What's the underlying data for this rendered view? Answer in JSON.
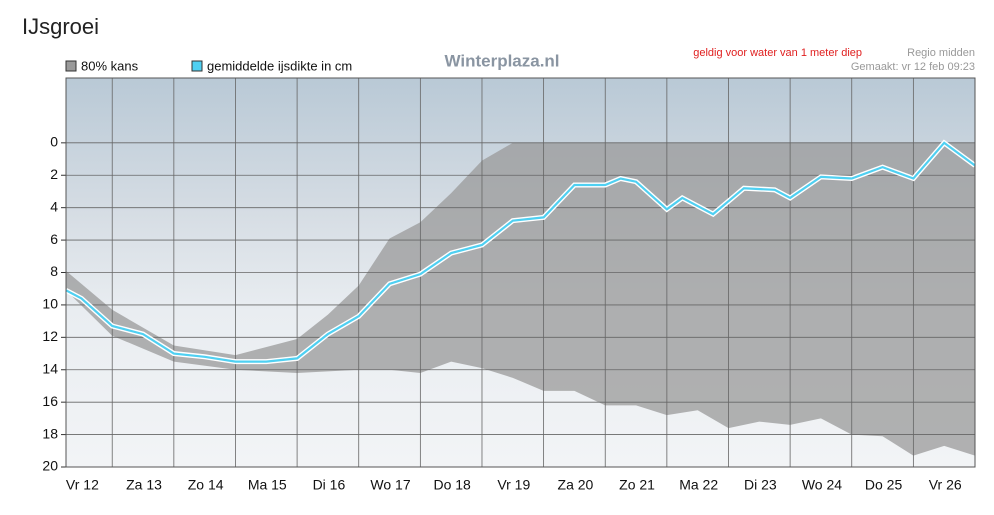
{
  "page_title": "IJsgroei",
  "chart_data": {
    "type": "band-line",
    "watermark": "Winterplaza.nl",
    "note": "geldig voor water van 1 meter diep",
    "region": "Regio midden",
    "made": "Gemaakt: vr 12 feb 09:23",
    "categories": [
      "Vr 12",
      "Za 13",
      "Zo 14",
      "Ma 15",
      "Di 16",
      "Wo 17",
      "Do 18",
      "Vr 19",
      "Za 20",
      "Zo 21",
      "Ma 22",
      "Di 23",
      "Wo 24",
      "Do 25",
      "Vr 26"
    ],
    "xlim": [
      0.25,
      15
    ],
    "ylim": [
      -4,
      20
    ],
    "yticks": [
      0,
      2,
      4,
      6,
      8,
      10,
      12,
      14,
      16,
      18,
      20
    ],
    "grid": true,
    "series": [
      {
        "name": "80% kans",
        "color": "#9a9a9a",
        "x": [
          0.25,
          1,
          2,
          3,
          4,
          4.5,
          5,
          5.5,
          6,
          6.5,
          7,
          7.5,
          8,
          8.5,
          9,
          9.5,
          10,
          10.5,
          11,
          11.5,
          12,
          12.5,
          13,
          13.5,
          14,
          14.5,
          15
        ],
        "low": [
          7.9,
          10.3,
          12.5,
          13.1,
          12.1,
          10.6,
          8.8,
          5.9,
          4.9,
          3.1,
          1.1,
          0,
          0,
          0,
          0,
          0,
          0,
          0,
          0,
          0,
          0,
          0,
          0,
          0,
          0,
          0,
          0
        ],
        "high": [
          9.1,
          11.9,
          13.5,
          14.0,
          14.2,
          14.1,
          14.0,
          14.0,
          14.2,
          13.5,
          13.9,
          14.5,
          15.3,
          15.3,
          16.2,
          16.2,
          16.8,
          16.5,
          17.6,
          17.2,
          17.4,
          17.0,
          18.0,
          18.1,
          19.3,
          18.7,
          19.3
        ]
      },
      {
        "name": "gemiddelde ijsdikte in cm",
        "color": "#4fd0f2",
        "x": [
          0.25,
          0.5,
          1,
          1.5,
          2,
          2.5,
          3,
          3.5,
          4,
          4.5,
          5,
          5.5,
          6,
          6.5,
          7,
          7.5,
          8,
          8.5,
          9,
          9.25,
          9.5,
          10,
          10.25,
          10.5,
          10.75,
          11,
          11.25,
          11.75,
          12,
          12.5,
          13,
          13.5,
          14,
          14.5,
          15
        ],
        "values": [
          9.1,
          9.6,
          11.3,
          11.8,
          13.0,
          13.2,
          13.5,
          13.5,
          13.3,
          11.8,
          10.7,
          8.7,
          8.1,
          6.8,
          6.3,
          4.8,
          4.6,
          2.6,
          2.6,
          2.2,
          2.4,
          4.1,
          3.4,
          3.9,
          4.4,
          3.6,
          2.8,
          2.9,
          3.4,
          2.1,
          2.2,
          1.5,
          2.2,
          0.0,
          1.4
        ]
      }
    ]
  }
}
